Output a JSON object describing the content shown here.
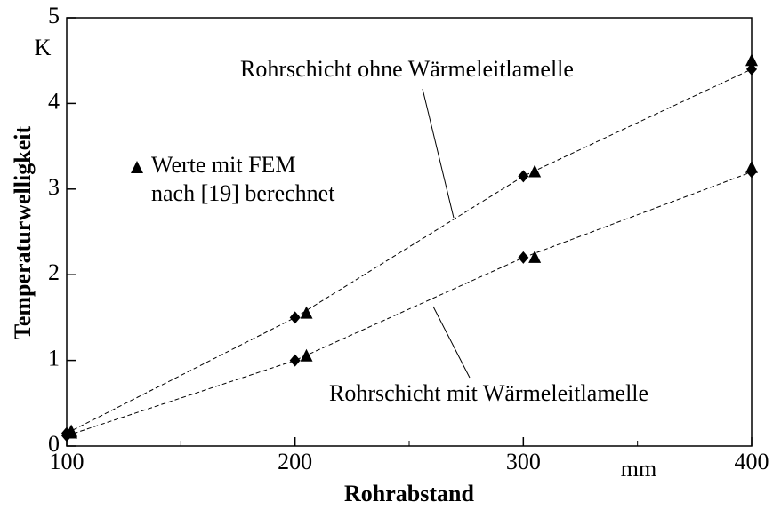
{
  "chart_data": {
    "type": "line",
    "xlabel": "Rohrabstand",
    "ylabel": "Temperaturwelligkeit",
    "xunit": "mm",
    "yunit": "K",
    "xlim": [
      100,
      400
    ],
    "xticks": [
      100,
      200,
      300,
      400
    ],
    "xminorticks": [
      150,
      250,
      350
    ],
    "ylim": [
      0,
      5
    ],
    "yticks": [
      0,
      1,
      2,
      3,
      4,
      5
    ],
    "color": "#000000",
    "series": [
      {
        "name": "Rohrschicht ohne Wärmeleitlamelle",
        "marker": "diamond",
        "line": "dashed",
        "x": [
          100,
          200,
          300,
          400
        ],
        "values": [
          0.15,
          1.5,
          3.15,
          4.4
        ]
      },
      {
        "name": "Rohrschicht mit Wärmeleitlamelle",
        "marker": "diamond",
        "line": "dashed",
        "x": [
          100,
          200,
          300,
          400
        ],
        "values": [
          0.12,
          1.0,
          2.2,
          3.2
        ]
      },
      {
        "name": [
          "Werte mit FEM",
          "nach [19] berechnet"
        ],
        "marker": "triangle",
        "line": "none",
        "x": [
          102,
          205,
          305,
          400,
          102,
          205,
          305,
          400
        ],
        "values": [
          0.17,
          1.55,
          3.2,
          4.5,
          0.15,
          1.05,
          2.2,
          3.25
        ]
      }
    ]
  }
}
